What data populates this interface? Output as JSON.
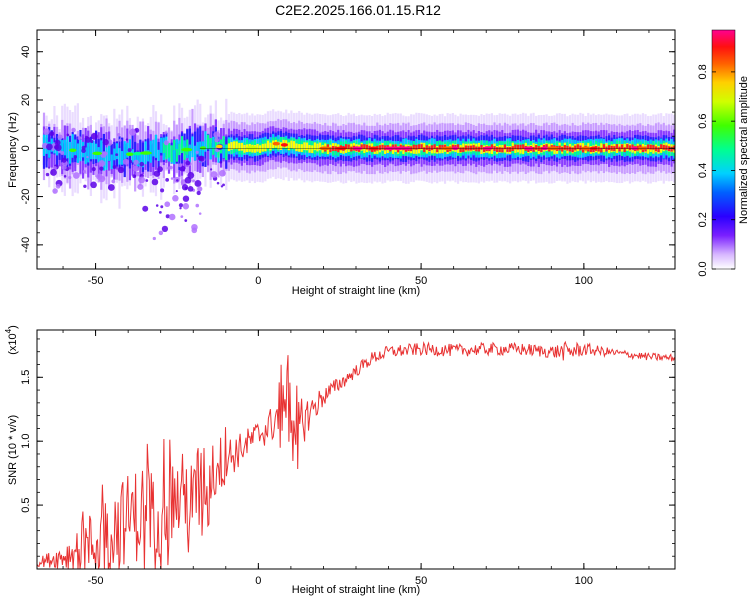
{
  "title": "C2E2.2025.166.01.15.R12",
  "chart_data": [
    {
      "type": "heatmap",
      "xlabel": "Height of straight line (km)",
      "ylabel": "Frequency (Hz)",
      "xlim": [
        -68,
        128
      ],
      "ylim": [
        -50,
        49
      ],
      "xticks": [
        -50,
        0,
        50,
        100
      ],
      "yticks": [
        -40,
        -20,
        0,
        20,
        40
      ],
      "colorbar": {
        "label": "Normalized spectral amplitude",
        "range": [
          0,
          0.97
        ],
        "ticks": [
          "0.0",
          "0.2",
          "0.4",
          "0.6",
          "0.8"
        ],
        "colors": [
          "#ffffff",
          "#b060ff",
          "#5a00e8",
          "#0010ff",
          "#00c8ff",
          "#00ff80",
          "#7aff00",
          "#ffff00",
          "#ff9000",
          "#ff2000",
          "#ff0080"
        ]
      },
      "ridge": {
        "description_points_x": [
          -66,
          -55,
          -45,
          -35,
          -25,
          -18,
          -10,
          0,
          5,
          10,
          20,
          40,
          60,
          80,
          100,
          128
        ],
        "center_frequency": [
          0,
          -1,
          -3,
          -2,
          -1,
          0,
          1,
          0,
          2,
          1,
          0,
          0,
          0,
          0,
          0,
          0
        ],
        "peak_amplitude": [
          0.45,
          0.5,
          0.55,
          0.5,
          0.6,
          0.5,
          0.7,
          0.75,
          0.8,
          0.8,
          0.85,
          0.95,
          0.95,
          0.95,
          0.9,
          0.85
        ]
      }
    },
    {
      "type": "line",
      "xlabel": "Height of straight line (km)",
      "ylabel": "SNR (10 * v/v)",
      "y_multiplier": "(x10",
      "y_multiplier_exp": "4",
      "xlim": [
        -68,
        128
      ],
      "ylim": [
        0,
        1.87
      ],
      "xticks": [
        -50,
        0,
        50,
        100
      ],
      "yticks": [
        "0.5",
        "1.0",
        "1.5"
      ],
      "color": "#e83232",
      "series": [
        {
          "x": [
            -68,
            -60,
            -50,
            -45,
            -40,
            -35,
            -30,
            -25,
            -20,
            -15,
            -10,
            -5,
            0,
            5,
            8,
            10,
            12,
            15,
            20,
            25,
            30,
            35,
            40,
            50,
            60,
            70,
            80,
            90,
            95,
            100,
            110,
            120,
            128
          ],
          "values": [
            0.05,
            0.1,
            0.2,
            0.3,
            0.4,
            0.45,
            0.5,
            0.55,
            0.6,
            0.75,
            0.85,
            0.95,
            1.05,
            1.15,
            1.4,
            1.2,
            1.1,
            1.2,
            1.35,
            1.45,
            1.55,
            1.65,
            1.7,
            1.72,
            1.71,
            1.72,
            1.72,
            1.7,
            1.7,
            1.72,
            1.69,
            1.66,
            1.65
          ],
          "variability": [
            0.03,
            0.1,
            0.3,
            0.35,
            0.35,
            0.4,
            0.4,
            0.35,
            0.35,
            0.3,
            0.2,
            0.12,
            0.12,
            0.15,
            0.35,
            0.25,
            0.25,
            0.15,
            0.08,
            0.06,
            0.05,
            0.05,
            0.05,
            0.05,
            0.05,
            0.05,
            0.05,
            0.05,
            0.08,
            0.05,
            0.03,
            0.03,
            0.03
          ]
        }
      ]
    }
  ]
}
